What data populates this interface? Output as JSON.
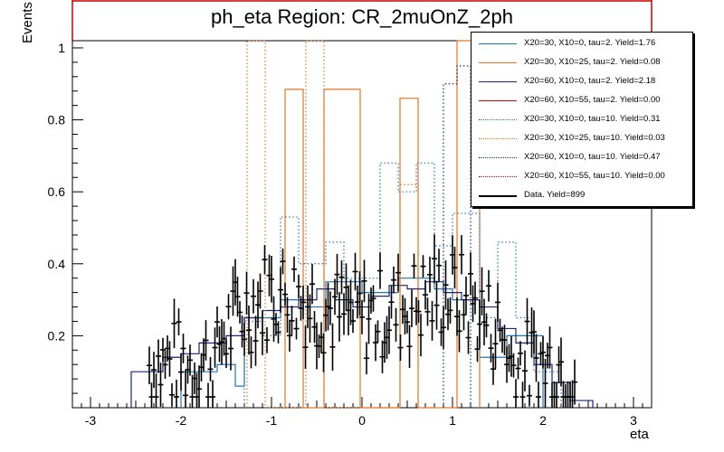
{
  "chart_data": {
    "type": "line",
    "title": "ph_eta Region: CR_2muOnZ_2ph",
    "xlabel": "eta",
    "ylabel": "Events",
    "xlim": [
      -3.2,
      3.2
    ],
    "ylim": [
      0,
      1.02
    ],
    "x_ticks": [
      -3,
      -2,
      -1,
      0,
      1,
      2,
      3
    ],
    "y_ticks": [
      0.2,
      0.4,
      0.6,
      0.8,
      1
    ],
    "grid": false,
    "legend_position": "top-right",
    "series": [
      {
        "name": "X20=30, X10=0, tau=2. Yield=1.76",
        "color": "#1f77b4",
        "style": "solid",
        "edges": [
          -2.0,
          -1.6,
          -1.4,
          -1.3,
          -0.9,
          -0.6,
          -0.4,
          0.0,
          0.4,
          0.8,
          1.0,
          1.3,
          1.6,
          2.0
        ],
        "values": [
          0.1,
          0.12,
          0.06,
          0.25,
          0.3,
          0.28,
          0.35,
          0.32,
          0.36,
          0.33,
          0.3,
          0.14,
          0.2
        ]
      },
      {
        "name": "X20=30, X10=25, tau=2. Yield=0.08",
        "color": "#e0762b",
        "style": "solid",
        "edges": [
          -0.85,
          -0.65,
          -0.42,
          -0.02,
          0.42,
          0.62,
          1.05,
          1.3
        ],
        "values": [
          0.885,
          0,
          0.885,
          0,
          0.86,
          0,
          1.02
        ]
      },
      {
        "name": "X20=60, X10=0, tau=2. Yield=2.18",
        "color": "#1a237e",
        "style": "solid",
        "edges": [
          -2.55,
          -2.2,
          -2.0,
          -1.8,
          -1.5,
          -1.3,
          -1.1,
          -0.9,
          -0.7,
          -0.5,
          -0.3,
          -0.1,
          0.1,
          0.3,
          0.5,
          0.7,
          0.9,
          1.1,
          1.3,
          1.5,
          1.7,
          1.9,
          2.1,
          2.3,
          2.55
        ],
        "values": [
          0.1,
          0.14,
          0.15,
          0.18,
          0.2,
          0.25,
          0.27,
          0.28,
          0.3,
          0.33,
          0.3,
          0.28,
          0.31,
          0.34,
          0.33,
          0.35,
          0.32,
          0.3,
          0.28,
          0.22,
          0.18,
          0.12,
          0.07,
          0.02
        ]
      },
      {
        "name": "X20=60, X10=55, tau=2. Yield=0.00",
        "color": "#cc0000",
        "style": "solid",
        "edges": [],
        "values": []
      },
      {
        "name": "X20=30, X10=0, tau=10. Yield=0.31",
        "color": "#1f77b4",
        "style": "dotted",
        "edges": [
          -1.3,
          -1.1,
          -0.9,
          -0.7,
          -0.4,
          -0.2,
          0.2,
          0.4,
          0.6,
          0.8,
          1.0,
          1.3,
          1.5,
          1.7,
          1.9,
          2.2
        ],
        "values": [
          0.24,
          0.2,
          0.53,
          0.4,
          0.46,
          0.36,
          0.68,
          0.6,
          0.68,
          0.45,
          0.54,
          0.25,
          0.46,
          0.25,
          0.1
        ]
      },
      {
        "name": "X20=30, X10=25, tau=10. Yield=0.03",
        "color": "#e0762b",
        "style": "dotted",
        "edges": [
          -1.27,
          -1.07,
          -0.62,
          -0.42,
          0.42,
          0.62
        ],
        "values": [
          1.02,
          0,
          1.02,
          0,
          0.62
        ]
      },
      {
        "name": "X20=60, X10=0, tau=10. Yield=0.47",
        "color": "#1a237e",
        "style": "dotted",
        "edges": [
          0.9,
          1.05,
          1.2
        ],
        "values": [
          0.9,
          0.95
        ]
      },
      {
        "name": "X20=60, X10=55, tau=10. Yield=0.00",
        "color": "#cc0000",
        "style": "dotted",
        "edges": [],
        "values": []
      },
      {
        "name": "Data. Yield=899",
        "color": "#000000",
        "style": "points",
        "edges": [],
        "values": []
      }
    ]
  },
  "legend": {
    "entries": [
      "X20=30, X10=0, tau=2. Yield=1.76",
      "X20=30, X10=25, tau=2. Yield=0.08",
      "X20=60, X10=0, tau=2. Yield=2.18",
      "X20=60, X10=55, tau=2. Yield=0.00",
      "X20=30, X10=0, tau=10. Yield=0.31",
      "X20=30, X10=25, tau=10. Yield=0.03",
      "X20=60, X10=0, tau=10. Yield=0.47",
      "X20=60, X10=55, tau=10. Yield=0.00",
      "Data. Yield=899"
    ]
  },
  "colors": {
    "frame_red": "#cc0000",
    "blue": "#1f77b4",
    "orange": "#e0762b",
    "navy": "#1a237e",
    "data": "#000000"
  }
}
